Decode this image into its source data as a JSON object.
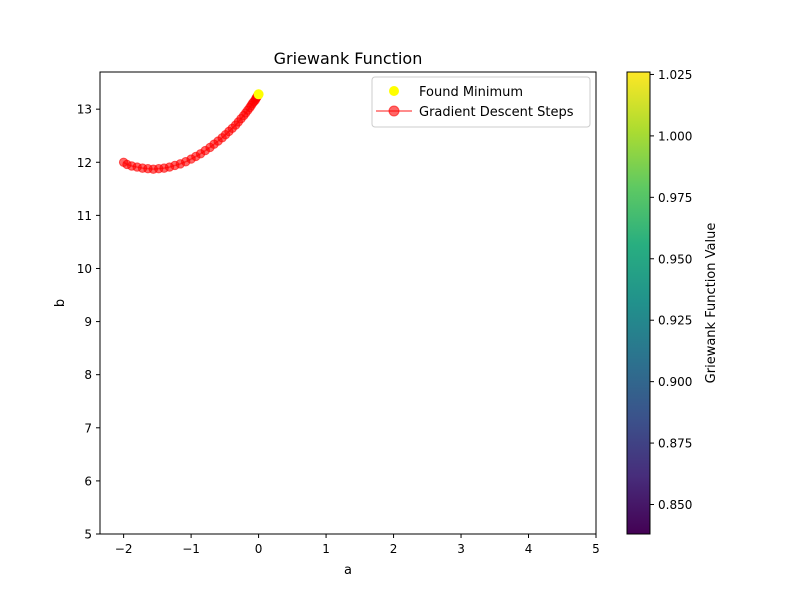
{
  "chart_data": {
    "type": "scatter",
    "title": "Griewank Function",
    "xlabel": "a",
    "ylabel": "b",
    "xlim": [
      -2.35,
      5.0
    ],
    "ylim": [
      5.0,
      13.7
    ],
    "xticks": [
      -2,
      -1,
      0,
      1,
      2,
      3,
      4,
      5
    ],
    "xtick_labels": [
      "−2",
      "−1",
      "0",
      "1",
      "2",
      "3",
      "4",
      "5"
    ],
    "yticks": [
      5,
      6,
      7,
      8,
      9,
      10,
      11,
      12,
      13
    ],
    "ytick_labels": [
      "5",
      "6",
      "7",
      "8",
      "9",
      "10",
      "11",
      "12",
      "13"
    ],
    "grid": false,
    "legend_position": "upper right",
    "colorbar": {
      "label": "Griewank Function Value",
      "range": [
        0.838,
        1.026
      ],
      "ticks": [
        0.85,
        0.875,
        0.9,
        0.925,
        0.95,
        0.975,
        1.0,
        1.025
      ],
      "tick_labels": [
        "0.850",
        "0.875",
        "0.900",
        "0.925",
        "0.950",
        "0.975",
        "1.000",
        "1.025"
      ],
      "colormap": "viridis"
    },
    "series": [
      {
        "name": "Gradient Descent Steps",
        "color": "#ff0000",
        "opacity": 0.6,
        "marker": "circle",
        "line": true,
        "x": [
          -2.0,
          -1.95,
          -1.88,
          -1.8,
          -1.72,
          -1.64,
          -1.56,
          -1.48,
          -1.4,
          -1.32,
          -1.24,
          -1.16,
          -1.08,
          -1.0,
          -0.93,
          -0.86,
          -0.79,
          -0.72,
          -0.66,
          -0.6,
          -0.54,
          -0.49,
          -0.44,
          -0.39,
          -0.34,
          -0.3,
          -0.26,
          -0.22,
          -0.19,
          -0.16,
          -0.13,
          -0.11,
          -0.09,
          -0.07,
          -0.05,
          -0.04,
          -0.03,
          -0.02,
          -0.01,
          -0.005,
          0.0
        ],
        "y": [
          12.0,
          11.96,
          11.93,
          11.91,
          11.89,
          11.88,
          11.87,
          11.88,
          11.89,
          11.91,
          11.94,
          11.97,
          12.01,
          12.06,
          12.11,
          12.16,
          12.22,
          12.28,
          12.34,
          12.4,
          12.46,
          12.52,
          12.58,
          12.64,
          12.7,
          12.76,
          12.82,
          12.88,
          12.93,
          12.98,
          13.03,
          13.07,
          13.11,
          13.14,
          13.17,
          13.2,
          13.22,
          13.24,
          13.26,
          13.27,
          13.28
        ]
      },
      {
        "name": "Found Minimum",
        "color": "#ffff00",
        "marker": "circle",
        "line": false,
        "x": [
          0.0
        ],
        "y": [
          13.28
        ]
      }
    ]
  }
}
